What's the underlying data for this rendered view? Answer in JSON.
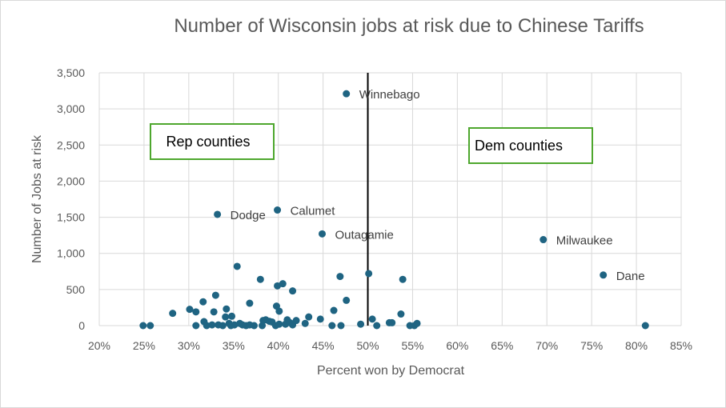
{
  "chart_data": {
    "type": "scatter",
    "title": "Number of Wisconsin jobs at risk due to Chinese Tariffs",
    "xlabel": "Percent won by Democrat",
    "ylabel": "Number of Jobs at risk",
    "xlim": [
      0.2,
      0.85
    ],
    "ylim": [
      0,
      3500
    ],
    "x_ticks": [
      "20%",
      "25%",
      "30%",
      "35%",
      "40%",
      "45%",
      "50%",
      "55%",
      "60%",
      "65%",
      "70%",
      "75%",
      "80%",
      "85%"
    ],
    "y_ticks": [
      "0",
      "500",
      "1,000",
      "1,500",
      "2,000",
      "2,500",
      "3,000",
      "3,500"
    ],
    "grid": true,
    "marker_color": "#1F6482",
    "divider_x": 0.5,
    "annotations_boxes": [
      {
        "text": "Rep counties",
        "border_color": "#4EA72E"
      },
      {
        "text": "Dem counties",
        "border_color": "#4EA72E"
      }
    ],
    "labeled_points": [
      {
        "name": "Winnebago",
        "x": 0.476,
        "y": 3210
      },
      {
        "name": "Calumet",
        "x": 0.399,
        "y": 1600
      },
      {
        "name": "Dodge",
        "x": 0.332,
        "y": 1540
      },
      {
        "name": "Outagamie",
        "x": 0.449,
        "y": 1270
      },
      {
        "name": "Milwaukee",
        "x": 0.696,
        "y": 1190
      },
      {
        "name": "Dane",
        "x": 0.763,
        "y": 700
      }
    ],
    "points": [
      {
        "x": 0.249,
        "y": 0
      },
      {
        "x": 0.257,
        "y": 0
      },
      {
        "x": 0.282,
        "y": 170
      },
      {
        "x": 0.301,
        "y": 225
      },
      {
        "x": 0.308,
        "y": 190
      },
      {
        "x": 0.308,
        "y": 0
      },
      {
        "x": 0.316,
        "y": 330
      },
      {
        "x": 0.317,
        "y": 55
      },
      {
        "x": 0.32,
        "y": 0
      },
      {
        "x": 0.326,
        "y": 10
      },
      {
        "x": 0.328,
        "y": 190
      },
      {
        "x": 0.33,
        "y": 420
      },
      {
        "x": 0.333,
        "y": 10
      },
      {
        "x": 0.338,
        "y": 0
      },
      {
        "x": 0.341,
        "y": 120
      },
      {
        "x": 0.342,
        "y": 230
      },
      {
        "x": 0.345,
        "y": 30
      },
      {
        "x": 0.347,
        "y": 0
      },
      {
        "x": 0.348,
        "y": 130
      },
      {
        "x": 0.351,
        "y": 10
      },
      {
        "x": 0.354,
        "y": 820
      },
      {
        "x": 0.357,
        "y": 30
      },
      {
        "x": 0.36,
        "y": 10
      },
      {
        "x": 0.364,
        "y": 0
      },
      {
        "x": 0.368,
        "y": 310
      },
      {
        "x": 0.368,
        "y": 10
      },
      {
        "x": 0.373,
        "y": 0
      },
      {
        "x": 0.38,
        "y": 640
      },
      {
        "x": 0.382,
        "y": 0
      },
      {
        "x": 0.383,
        "y": 70
      },
      {
        "x": 0.386,
        "y": 80
      },
      {
        "x": 0.39,
        "y": 60
      },
      {
        "x": 0.393,
        "y": 50
      },
      {
        "x": 0.397,
        "y": 0
      },
      {
        "x": 0.398,
        "y": 270
      },
      {
        "x": 0.399,
        "y": 550
      },
      {
        "x": 0.401,
        "y": 200
      },
      {
        "x": 0.401,
        "y": 20
      },
      {
        "x": 0.405,
        "y": 580
      },
      {
        "x": 0.408,
        "y": 20
      },
      {
        "x": 0.41,
        "y": 80
      },
      {
        "x": 0.413,
        "y": 40
      },
      {
        "x": 0.416,
        "y": 480
      },
      {
        "x": 0.416,
        "y": 10
      },
      {
        "x": 0.42,
        "y": 70
      },
      {
        "x": 0.43,
        "y": 30
      },
      {
        "x": 0.434,
        "y": 120
      },
      {
        "x": 0.447,
        "y": 90
      },
      {
        "x": 0.46,
        "y": 0
      },
      {
        "x": 0.462,
        "y": 210
      },
      {
        "x": 0.469,
        "y": 680
      },
      {
        "x": 0.47,
        "y": 0
      },
      {
        "x": 0.476,
        "y": 350
      },
      {
        "x": 0.492,
        "y": 20
      },
      {
        "x": 0.501,
        "y": 720
      },
      {
        "x": 0.505,
        "y": 90
      },
      {
        "x": 0.51,
        "y": 0
      },
      {
        "x": 0.524,
        "y": 40
      },
      {
        "x": 0.527,
        "y": 40
      },
      {
        "x": 0.537,
        "y": 160
      },
      {
        "x": 0.539,
        "y": 640
      },
      {
        "x": 0.547,
        "y": 0
      },
      {
        "x": 0.552,
        "y": 0
      },
      {
        "x": 0.555,
        "y": 30
      },
      {
        "x": 0.81,
        "y": 0
      }
    ]
  }
}
